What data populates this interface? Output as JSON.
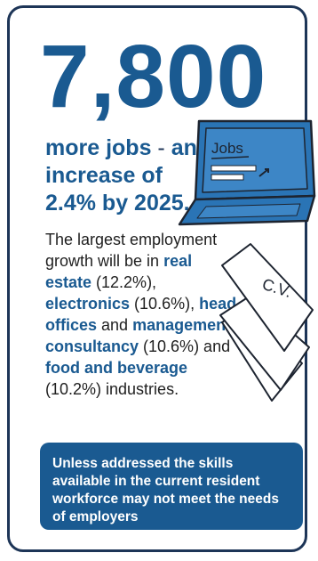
{
  "stat": {
    "value": "7,800"
  },
  "headline": {
    "part1": "more jobs",
    "separator": " - ",
    "part2": "an increase of 2.4% by 2025."
  },
  "body": {
    "t1": "The largest employment growth will be in ",
    "h1": "real estate",
    "t2": " (12.2%), ",
    "h2": "electronics",
    "t3": " (10.6%), ",
    "h3": "head offices",
    "t4": " and ",
    "h4": "management consultancy",
    "t5": " (10.6%) and ",
    "h5": "food and beverage",
    "t6": " (10.2%) industries."
  },
  "callout": {
    "text": "Unless addressed the skills available in the current resident workforce may not meet the needs of employers"
  },
  "illustration": {
    "screen_text": "Jobs",
    "paper_text": "C.V.",
    "laptop_color": "#2a74b5",
    "outline_color": "#1d2430"
  },
  "colors": {
    "accent": "#1a5a91",
    "border": "#1d3557"
  }
}
